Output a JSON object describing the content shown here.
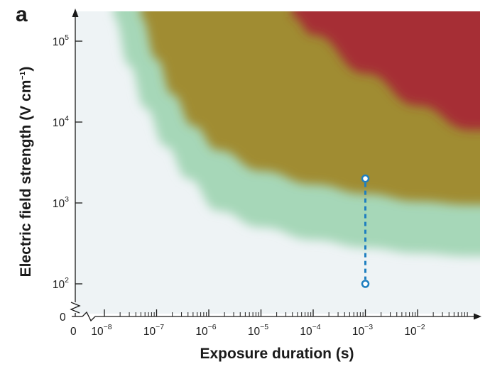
{
  "chart_data": {
    "type": "area",
    "panel_label": "a",
    "xlabel": "Exposure duration (s)",
    "ylabel_main": "Electric field strength (V cm",
    "ylabel_sup": "−1",
    "ylabel_close": ")",
    "x_scale": "log",
    "y_scale": "log",
    "xlim": [
      5e-09,
      0.1
    ],
    "ylim": [
      50,
      200000
    ],
    "x_zero_label": "0",
    "y_zero_label": "0",
    "x_ticks": [
      {
        "value": 1e-08,
        "base": "10",
        "exp": "−8"
      },
      {
        "value": 1e-07,
        "base": "10",
        "exp": "−7"
      },
      {
        "value": 1e-06,
        "base": "10",
        "exp": "−6"
      },
      {
        "value": 1e-05,
        "base": "10",
        "exp": "−5"
      },
      {
        "value": 0.0001,
        "base": "10",
        "exp": "−4"
      },
      {
        "value": 0.001,
        "base": "10",
        "exp": "−3"
      },
      {
        "value": 0.01,
        "base": "10",
        "exp": "−2"
      }
    ],
    "y_ticks": [
      {
        "value": 100,
        "base": "10",
        "exp": "2"
      },
      {
        "value": 1000,
        "base": "10",
        "exp": "3"
      },
      {
        "value": 10000,
        "base": "10",
        "exp": "4"
      },
      {
        "value": 100000,
        "base": "10",
        "exp": "5"
      }
    ],
    "regions": [
      {
        "name": "",
        "color": "#a6d7b8",
        "boundary": [
          [
            1.5e-08,
            200000
          ],
          [
            3e-08,
            50000
          ],
          [
            6e-08,
            15000
          ],
          [
            1.5e-07,
            5000
          ],
          [
            4e-07,
            2000
          ],
          [
            1.5e-06,
            800
          ],
          [
            1e-05,
            500
          ],
          [
            0.0001,
            350
          ],
          [
            0.001,
            280
          ],
          [
            0.01,
            240
          ],
          [
            0.1,
            220
          ]
        ]
      },
      {
        "name": "",
        "color": "#a08c30",
        "boundary": [
          [
            5e-08,
            200000
          ],
          [
            1e-07,
            60000
          ],
          [
            2e-07,
            22000
          ],
          [
            5e-07,
            9000
          ],
          [
            1.5e-06,
            4500
          ],
          [
            1e-05,
            2500
          ],
          [
            0.0001,
            1700
          ],
          [
            0.001,
            1300
          ],
          [
            0.01,
            1050
          ],
          [
            0.1,
            950
          ]
        ]
      },
      {
        "name": "",
        "color": "#a62e34",
        "boundary": [
          [
            4e-05,
            200000
          ],
          [
            0.0001,
            120000
          ],
          [
            0.001,
            40000
          ],
          [
            0.01,
            16000
          ],
          [
            0.1,
            8000
          ]
        ]
      }
    ],
    "marker": {
      "color": "#1f7fc0",
      "x": 0.001,
      "y_low": 100,
      "y_high": 2000
    }
  }
}
